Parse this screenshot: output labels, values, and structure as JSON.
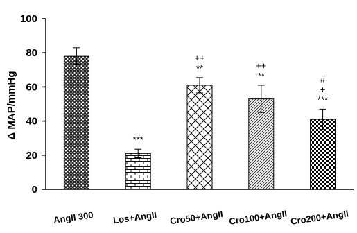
{
  "chart_data": {
    "type": "bar",
    "title": "",
    "xlabel": "",
    "ylabel": "Δ MAP/mmHg",
    "ylim": [
      0,
      100
    ],
    "yticks": [
      0,
      20,
      40,
      60,
      80,
      100
    ],
    "grid": false,
    "categories": [
      "AngII 300",
      "Los+AngII",
      "Cro50+AngII",
      "Cro100+AngII",
      "Cro200+AngII"
    ],
    "values": [
      78,
      21,
      61,
      53,
      41
    ],
    "errors": [
      5,
      2.5,
      4.5,
      8,
      6
    ],
    "patterns": [
      "crosshatch-dense",
      "brick",
      "diagonal-crosshatch",
      "diagonal-lines",
      "checkerboard"
    ],
    "annotations": [
      [],
      [
        "***"
      ],
      [
        "++",
        "**"
      ],
      [
        "++",
        "**"
      ],
      [
        "#",
        "+",
        "***"
      ]
    ]
  }
}
